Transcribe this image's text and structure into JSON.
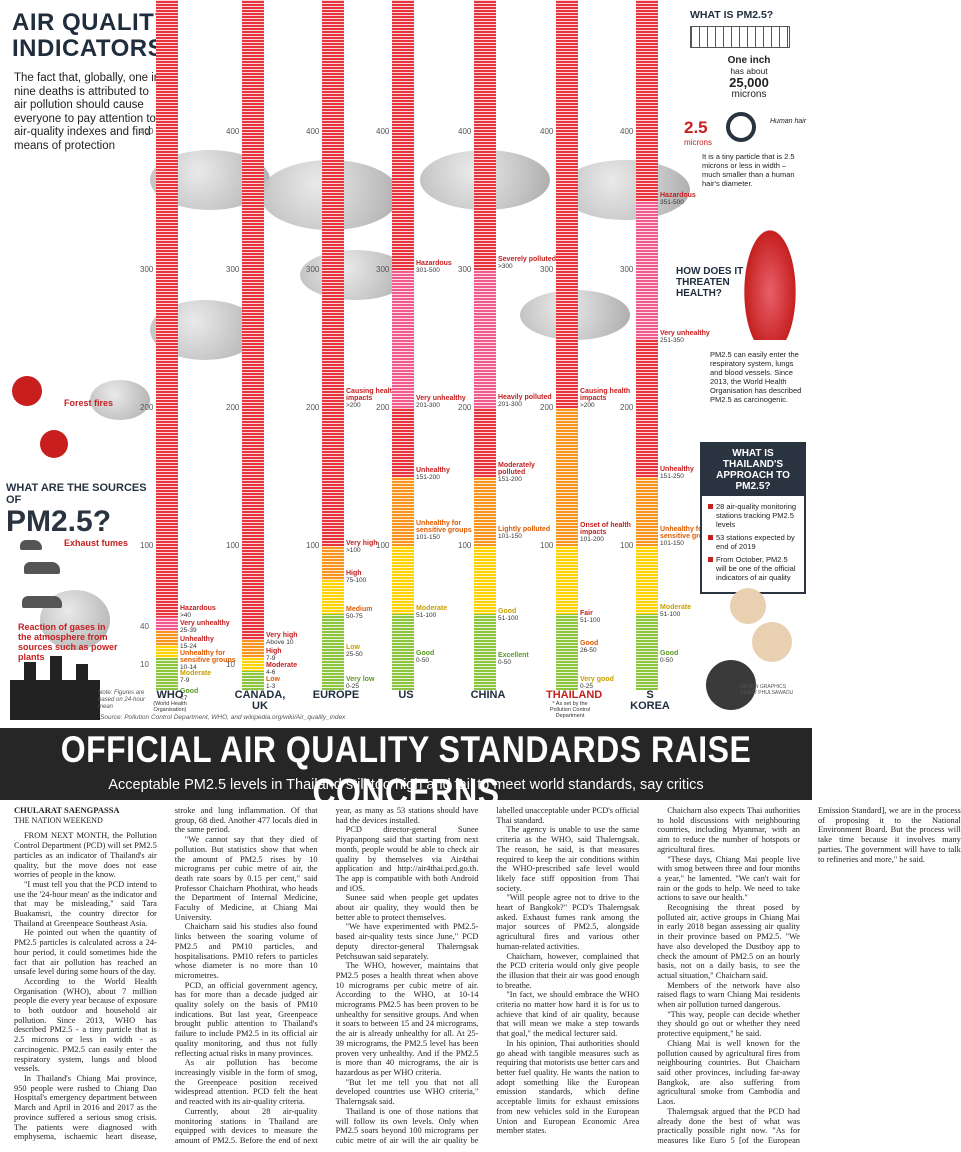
{
  "title_lines": [
    "AIR QUALITY",
    "INDICATORS"
  ],
  "intro": "The fact that, globally, one in nine deaths is attributed to air pollution should cause everyone to pay attention to air-quality indexes and find means of protection",
  "sources": {
    "question_small": "WHAT ARE THE SOURCES OF",
    "question_big": "PM2.5?",
    "forest_fires": "Forest fires",
    "exhaust": "Exhaust fumes",
    "reaction": "Reaction of gases in the atmosphere from sources such as power plants"
  },
  "what_is": {
    "title": "WHAT IS PM2.5?",
    "one_inch": "One inch",
    "has_about": "has about",
    "count": "25,000",
    "microns": "microns",
    "human_hair": "Human hair",
    "big_num": "2.5",
    "microns_small": "microns",
    "desc": "It is a tiny particle that is 2.5 microns or less in width – much smaller than a human hair's diameter."
  },
  "threaten": {
    "title": "HOW DOES IT THREATEN HEALTH?",
    "desc": "PM2.5 can easily enter the respiratory system, lungs and blood vessels. Since 2013, the World Health Organisation has described PM2.5 as carcinogenic."
  },
  "approach": {
    "title": "WHAT IS THAILAND'S APPROACH TO PM2.5?",
    "items": [
      "28 air-quality monitoring stations tracking PM2.5 levels",
      "53 stations expected by end of 2019",
      "From October, PM2.5 will be one of the official indicators of air quality"
    ]
  },
  "axis_ticks": [
    "400",
    "300",
    "200",
    "100",
    "40",
    "10"
  ],
  "columns": [
    {
      "name": "WHO",
      "sub": "(World Health Organisation)"
    },
    {
      "name": "CANADA, UK",
      "sub": ""
    },
    {
      "name": "EUROPE",
      "sub": ""
    },
    {
      "name": "US",
      "sub": ""
    },
    {
      "name": "CHINA",
      "sub": ""
    },
    {
      "name": "THAILAND",
      "sub": "* As set by the Pollution Control Department"
    },
    {
      "name": "S KOREA",
      "sub": ""
    }
  ],
  "levels": {
    "who": [
      {
        "label": "Hazardous",
        "range": ">40"
      },
      {
        "label": "Very unhealthy",
        "range": "25-39"
      },
      {
        "label": "Unhealthy",
        "range": "15-24"
      },
      {
        "label": "Unhealthy for sensitive groups",
        "range": "10-14"
      },
      {
        "label": "Moderate",
        "range": "7-9"
      },
      {
        "label": "Good",
        "range": "<7"
      }
    ],
    "canada": [
      {
        "label": "Very high",
        "range": "Above 10"
      },
      {
        "label": "High",
        "range": "7-9"
      },
      {
        "label": "Moderate",
        "range": "4-6"
      },
      {
        "label": "Low",
        "range": "1-3"
      }
    ],
    "europe": [
      {
        "label": "Causing health impacts",
        "range": ">200"
      },
      {
        "label": "Very high",
        "range": ">100"
      },
      {
        "label": "High",
        "range": "75-100"
      },
      {
        "label": "Medium",
        "range": "50-75"
      },
      {
        "label": "Low",
        "range": "25-50"
      },
      {
        "label": "Very low",
        "range": "0-25"
      }
    ],
    "us": [
      {
        "label": "Hazardous",
        "range": "301-500"
      },
      {
        "label": "Very unhealthy",
        "range": "201-300"
      },
      {
        "label": "Unhealthy",
        "range": "151-200"
      },
      {
        "label": "Unhealthy for sensitive groups",
        "range": "101-150"
      },
      {
        "label": "Moderate",
        "range": "51-100"
      },
      {
        "label": "Good",
        "range": "0-50"
      }
    ],
    "china": [
      {
        "label": "Severely polluted",
        "range": ">300"
      },
      {
        "label": "Heavily polluted",
        "range": "201-300"
      },
      {
        "label": "Moderately polluted",
        "range": "151-200"
      },
      {
        "label": "Lightly polluted",
        "range": "101-150"
      },
      {
        "label": "Good",
        "range": "51-100"
      },
      {
        "label": "Excellent",
        "range": "0-50"
      }
    ],
    "thailand": [
      {
        "label": "Causing health impacts",
        "range": ">200"
      },
      {
        "label": "Onset of health impacts",
        "range": "101-200"
      },
      {
        "label": "Fair",
        "range": "51-100"
      },
      {
        "label": "Good",
        "range": "26-50"
      },
      {
        "label": "Very good",
        "range": "0-25"
      }
    ],
    "korea": [
      {
        "label": "Hazardous",
        "range": "351-500"
      },
      {
        "label": "Very unhealthy",
        "range": "251-350"
      },
      {
        "label": "Unhealthy",
        "range": "151-250"
      },
      {
        "label": "Unhealthy for sensitive groups",
        "range": "101-150"
      },
      {
        "label": "Moderate",
        "range": "51-100"
      },
      {
        "label": "Good",
        "range": "0-50"
      }
    ]
  },
  "note": "Note: Figures are based on 24-hour mean",
  "source_line": "Source: Pollution Control Department, WHO, and wikipedia.org/wiki/Air_quality_index",
  "credit": "NATION GRAPHICS PEADY PHULSAWADU",
  "headline": "OFFICIAL AIR QUALITY STANDARDS RAISE CONCERNS",
  "subhead": "Acceptable PM2.5 levels in Thailand still too high and fail to meet world standards, say critics",
  "byline": "CHULARAT SAENGPASSA",
  "publication": "THE NATION WEEKEND",
  "paragraphs": [
    "FROM NEXT MONTH, the Pollution Control Department (PCD) will set PM2.5 particles as an indicator of Thailand's air quality, but the move does not ease worries of people in the know.",
    "\"I must tell you that the PCD intend to use the '24-hour mean' as the indicator and that may be misleading,\" said Tara Buakamsri, the country director for Thailand at Greenpeace Southeast Asia.",
    "He pointed out when the quantity of PM2.5 particles is calculated across a 24-hour period, it could sometimes hide the fact that air pollution has reached an unsafe level during some hours of the day.",
    "According to the World Health Organisation (WHO), about 7 million people die every year because of exposure to both outdoor and household air pollution. Since 2013, WHO has described PM2.5 - a tiny particle that is 2.5 microns or less in width - as carcinogenic. PM2.5 can easily enter the respiratory system, lungs and blood vessels.",
    "In Thailand's Chiang Mai province, 950 people were rushed to Chiang Dao Hospital's emergency department between March and April in 2016 and 2017 as the province suffered a serious smog crisis. The patients were diagnosed with emphysema, ischaemic heart disease, stroke and lung inflammation. Of that group, 68 died. Another 477 locals died in the same period.",
    "\"We cannot say that they died of pollution. But statistics show that when the amount of PM2.5 rises by 10 micrograms per cubic metre of air, the death rate soars by 0.15 per cent,\" said Professor Chaicharn Phothirat, who heads the Department of Internal Medicine, Faculty of Medicine, at Chiang Mai University.",
    "Chaicharn said his studies also found links between the soaring volume of PM2.5 and PM10 particles, and hospitalisations. PM10 refers to particles whose diameter is no more than 10 micrometres.",
    "PCD, an official government agency, has for more than a decade judged air quality solely on the basis of PM10 indications. But last year, Greenpeace brought public attention to Thailand's failure to include PM2.5 in its official air quality monitoring, and thus not fully reflecting actual risks in many provinces.",
    "As air pollution has become increasingly visible in the form of smog, the Greenpeace position received widespread attention. PCD felt the heat and reacted with its air-quality criteria.",
    "Currently, about 28 air-quality monitoring stations in Thailand are equipped with devices to measure the amount of PM2.5. Before the end of next year, as many as 53 stations should have had the devices installed.",
    "PCD director-general Sunee Piyapanpong said that starting from next month, people would be able to check air quality by themselves via Air4thai application and http://air4thai.pcd.go.th. The app is compatible with both Android and iOS.",
    "Sunee said when people get updates about air quality, they would then be better able to protect themselves.",
    "\"We have experimented with PM2.5-based air-quality tests since June,\" PCD deputy director-general Thalerngsak Petchsuwan said separately.",
    "The WHO, however, maintains that PM2.5 poses a health threat when above 10 micrograms per cubic metre of air. According to the WHO, at 10-14 micrograms PM2.5 has been proven to be unhealthy for sensitive groups. And when it soars to between 15 and 24 micrograms, the air is already unhealthy for all. At 25-39 micrograms, the PM2.5 level has been proven very unhealthy. And if the PM2.5 is more than 40 micrograms, the air is hazardous as per WHO criteria.",
    "\"But let me tell you that not all developed countries use WHO criteria,\" Thalerngsak said.",
    "Thailand is one of those nations that will follow its own levels. Only when PM2.5 soars beyond 100 micrograms per cubic metre of air will the air quality be labelled unacceptable under PCD's official Thai standard.",
    "The agency is unable to use the same criteria as the WHO, said Thalerngsak. The reason, he said, is that measures required to keep the air conditions within the WHO-prescribed safe level would likely face stiff opposition from Thai society.",
    "\"Will people agree not to drive to the heart of Bangkok?\" PCD's Thalerngsak asked. Exhaust fumes rank among the major sources of PM2.5, alongside agricultural fires and various other human-related activities.",
    "Chaicharn, however, complained that the PCD criteria would only give people the illusion that their air was good enough to breathe.",
    "\"In fact, we should embrace the WHO criteria no matter how hard it is for us to achieve that kind of air quality, because that will mean we make a step towards that goal,\" the medical lecturer said.",
    "In his opinion, Thai authorities should go ahead with tangible measures such as requiring that motorists use better cars and better fuel quality. He wants the nation to adopt something like the European emission standards, which define acceptable limits for exhaust emissions from new vehicles sold in the European Union and European Economic Area member states.",
    "Chaicharn also expects Thai authorities to hold discussions with neighbouring countries, including Myanmar, with an aim to reduce the number of hotspots or agricultural fires.",
    "\"These days, Chiang Mai people live with smog between three and four months a year,\" he lamented. \"We can't wait for rain or the gods to help. We need to take actions to save our health.\"",
    "Recognising the threat posed by polluted air, active groups in Chiang Mai in early 2018 began assessing air quality in their province based on PM2.5. \"We have also developed the Dustboy app to check the amount of PM2.5 on an hourly basis, not on a daily basis, to see the actual situation,\" Chaicharn said.",
    "Members of the network have also raised flags to warn Chiang Mai residents when air pollution turned dangerous.",
    "\"This way, people can decide whether they should go out or whether they need protective equipment,\" he said.",
    "Chiang Mai is well known for the pollution caused by agricultural fires from neighbouring countries. But Chaicharn said other provinces, including far-away Bangkok, are also suffering from agricultural smoke from Cambodia and Laos.",
    "Thalerngsak argued that the PCD had already done the best of what was practically possible right now. \"As for measures like Euro 5 [of the European Emission Standard], we are in the process of proposing it to the National Environment Board. But the process will take time because it involves many parties. The government will have to talk to refineries and more,\" he said."
  ],
  "colors": {
    "red": "#e8343c",
    "pink": "#f05a8c",
    "orange": "#f7941d",
    "yellow": "#ffd200",
    "green": "#8cc63f",
    "dark": "#2a3340"
  }
}
